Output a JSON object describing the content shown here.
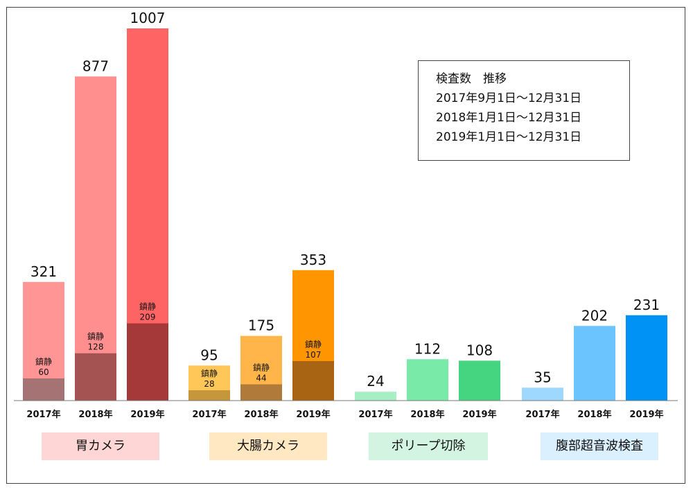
{
  "chart_data": {
    "type": "bar",
    "ylim": [
      0,
      1007
    ],
    "groups": [
      {
        "name": "胃カメラ",
        "label_bg": "#ffd6d6",
        "bars": [
          {
            "year": "2017年",
            "total": 321,
            "sub_label": "鎮静",
            "sub_value": 60,
            "color": "#ff9595",
            "sub_color": "#a57373"
          },
          {
            "year": "2018年",
            "total": 877,
            "sub_label": "鎮静",
            "sub_value": 128,
            "color": "#ff8f8f",
            "sub_color": "#a55252"
          },
          {
            "year": "2019年",
            "total": 1007,
            "sub_label": "鎮静",
            "sub_value": 209,
            "color": "#ff6464",
            "sub_color": "#a53838"
          }
        ]
      },
      {
        "name": "大腸カメラ",
        "label_bg": "#ffe8c2",
        "bars": [
          {
            "year": "2017年",
            "total": 95,
            "sub_label": "鎮静",
            "sub_value": 28,
            "color": "#ffc757",
            "sub_color": "#c6963a"
          },
          {
            "year": "2018年",
            "total": 175,
            "sub_label": "鎮静",
            "sub_value": 44,
            "color": "#ffb54a",
            "sub_color": "#b07b3a"
          },
          {
            "year": "2019年",
            "total": 353,
            "sub_label": "鎮静",
            "sub_value": 107,
            "color": "#ff9500",
            "sub_color": "#a86413"
          }
        ]
      },
      {
        "name": "ポリープ切除",
        "label_bg": "#d3f4e1",
        "bars": [
          {
            "year": "2017年",
            "total": 24,
            "color": "#a6efc4"
          },
          {
            "year": "2018年",
            "total": 112,
            "color": "#7aeaa9"
          },
          {
            "year": "2019年",
            "total": 108,
            "color": "#45d47f"
          }
        ]
      },
      {
        "name": "腹部超音波検査",
        "label_bg": "#dbf0ff",
        "bars": [
          {
            "year": "2017年",
            "total": 35,
            "color": "#9ed8ff"
          },
          {
            "year": "2018年",
            "total": 202,
            "color": "#6cc4ff"
          },
          {
            "year": "2019年",
            "total": 231,
            "color": "#0092f5"
          }
        ]
      }
    ]
  },
  "info_box": {
    "lines": [
      "検査数　推移",
      "2017年9月1日〜12月31日",
      "2018年1月1日〜12月31日",
      "2019年1月1日〜12月31日"
    ]
  }
}
